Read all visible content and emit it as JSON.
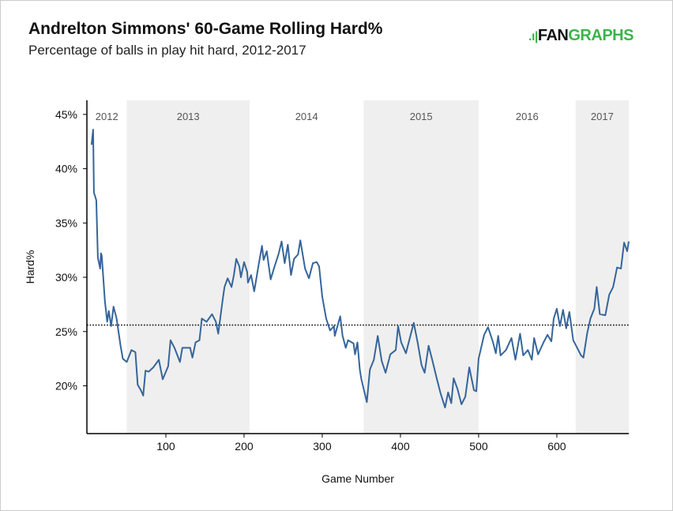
{
  "header": {
    "title": "Andrelton Simmons' 60-Game Rolling Hard%",
    "subtitle": "Percentage of balls in play hit hard, 2012-2017",
    "logo_text": "FANGRAPHS"
  },
  "chart_data": {
    "type": "line",
    "title": "Andrelton Simmons' 60-Game Rolling Hard%",
    "subtitle": "Percentage of balls in play hit hard, 2012-2017",
    "xlabel": "Game Number",
    "ylabel": "Hard%",
    "xlim": [
      -1,
      692
    ],
    "ylim": [
      15.6,
      46.3
    ],
    "x_ticks": [
      100,
      200,
      300,
      400,
      500,
      600
    ],
    "y_ticks": [
      20,
      25,
      30,
      35,
      40,
      45
    ],
    "y_tick_labels": [
      "20%",
      "25%",
      "30%",
      "35%",
      "40%",
      "45%"
    ],
    "grid": false,
    "line_color": "#36659a",
    "reference_line": {
      "value": 25.6,
      "style": "dotted"
    },
    "season_bands": [
      {
        "label": "2012",
        "start": -1,
        "end": 50,
        "shaded": false
      },
      {
        "label": "2013",
        "start": 50,
        "end": 207,
        "shaded": true
      },
      {
        "label": "2014",
        "start": 207,
        "end": 353,
        "shaded": false
      },
      {
        "label": "2015",
        "start": 353,
        "end": 500,
        "shaded": true
      },
      {
        "label": "2016",
        "start": 500,
        "end": 624,
        "shaded": false
      },
      {
        "label": "2017",
        "start": 624,
        "end": 692,
        "shaded": true
      }
    ],
    "series": [
      {
        "x": [
          5,
          7,
          8,
          11,
          13,
          16,
          17,
          18,
          22,
          25,
          27,
          30,
          33,
          37,
          42,
          45,
          50,
          56,
          61,
          64,
          68,
          71,
          74,
          78,
          84,
          91,
          96,
          103,
          106,
          111,
          118,
          121,
          131,
          134,
          138,
          143,
          146,
          152,
          159,
          164,
          167,
          172,
          175,
          179,
          184,
          187,
          190,
          194,
          196,
          200,
          204,
          205,
          209,
          213,
          219,
          223,
          225,
          229,
          234,
          239,
          244,
          248,
          252,
          256,
          260,
          264,
          269,
          272,
          278,
          283,
          288,
          293,
          296,
          300,
          305,
          310,
          315,
          316,
          323,
          326,
          330,
          333,
          340,
          342,
          345,
          348,
          350,
          357,
          361,
          366,
          371,
          376,
          381,
          387,
          394,
          397,
          401,
          407,
          412,
          417,
          422,
          427,
          431,
          436,
          441,
          446,
          451,
          457,
          461,
          465,
          468,
          473,
          478,
          483,
          488,
          494,
          497,
          500,
          507,
          512,
          518,
          522,
          525,
          528,
          535,
          542,
          547,
          553,
          557,
          563,
          568,
          571,
          576,
          583,
          588,
          593,
          596,
          600,
          604,
          608,
          612,
          616,
          621,
          626,
          631,
          634,
          639,
          643,
          648,
          651,
          655,
          662,
          667,
          672,
          677,
          682,
          686,
          690,
          692
        ],
        "y": [
          42.2,
          43.6,
          37.8,
          37.1,
          31.8,
          30.8,
          32.2,
          32.0,
          27.8,
          25.9,
          26.9,
          25.5,
          27.3,
          26.2,
          23.7,
          22.5,
          22.2,
          23.3,
          23.1,
          20.1,
          19.6,
          19.1,
          21.4,
          21.3,
          21.7,
          22.4,
          20.6,
          21.8,
          24.2,
          23.5,
          22.2,
          23.5,
          23.5,
          22.6,
          24.0,
          24.2,
          26.2,
          25.9,
          26.6,
          25.9,
          24.8,
          27.6,
          29.1,
          29.9,
          29.1,
          30.2,
          31.7,
          31.0,
          30.0,
          31.4,
          30.5,
          29.5,
          30.2,
          28.7,
          31.3,
          32.9,
          31.6,
          32.4,
          29.8,
          31.0,
          32.1,
          33.3,
          31.3,
          33.0,
          30.2,
          31.7,
          32.1,
          33.4,
          30.8,
          29.9,
          31.3,
          31.4,
          31.0,
          28.2,
          26.2,
          25.1,
          25.5,
          24.6,
          26.4,
          24.6,
          23.5,
          24.2,
          23.9,
          22.9,
          24.0,
          21.5,
          20.6,
          18.5,
          21.5,
          22.4,
          24.6,
          22.3,
          21.2,
          22.9,
          23.3,
          25.5,
          24.0,
          23.0,
          24.4,
          25.8,
          24.0,
          21.9,
          21.2,
          23.7,
          22.3,
          20.8,
          19.4,
          18.0,
          19.4,
          18.4,
          20.7,
          19.7,
          18.3,
          19.0,
          21.7,
          19.6,
          19.5,
          22.5,
          24.7,
          25.4,
          24.1,
          23.0,
          24.6,
          22.8,
          23.3,
          24.4,
          22.4,
          24.8,
          22.8,
          23.3,
          22.4,
          24.4,
          22.9,
          24.0,
          24.7,
          24.1,
          26.2,
          27.1,
          25.5,
          27.0,
          25.3,
          26.8,
          24.2,
          23.5,
          22.8,
          22.6,
          24.9,
          26.2,
          27.1,
          29.1,
          26.6,
          26.5,
          28.4,
          29.1,
          30.9,
          30.8,
          33.2,
          32.4,
          33.3
        ]
      }
    ]
  }
}
